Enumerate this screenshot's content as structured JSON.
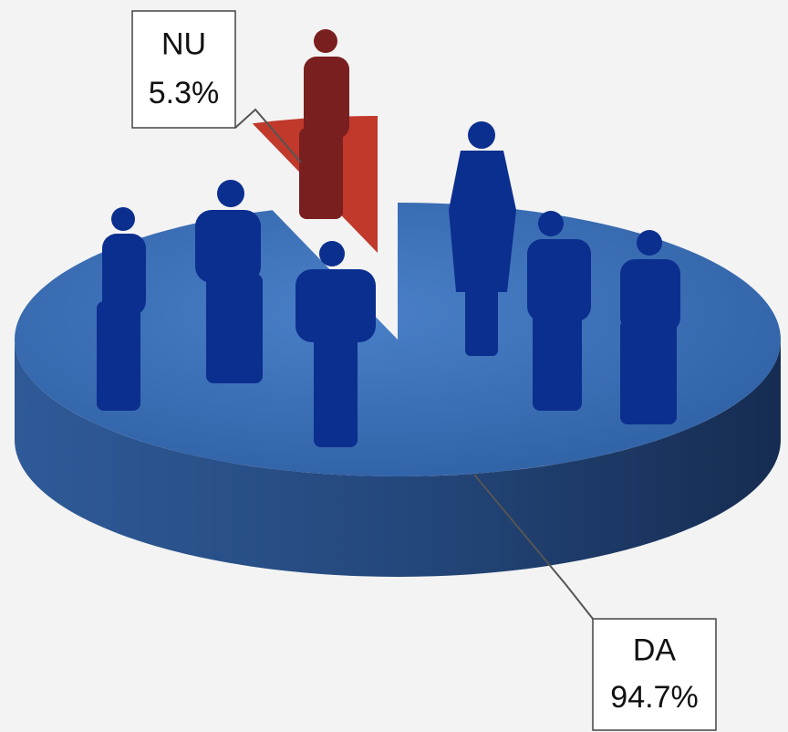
{
  "chart_data": {
    "type": "pie",
    "categories": [
      "DA",
      "NU"
    ],
    "values": [
      94.7,
      5.3
    ],
    "value_labels": [
      "94.7%",
      "5.3%"
    ],
    "colors": [
      "#3a6db4",
      "#c0392b"
    ]
  }
}
